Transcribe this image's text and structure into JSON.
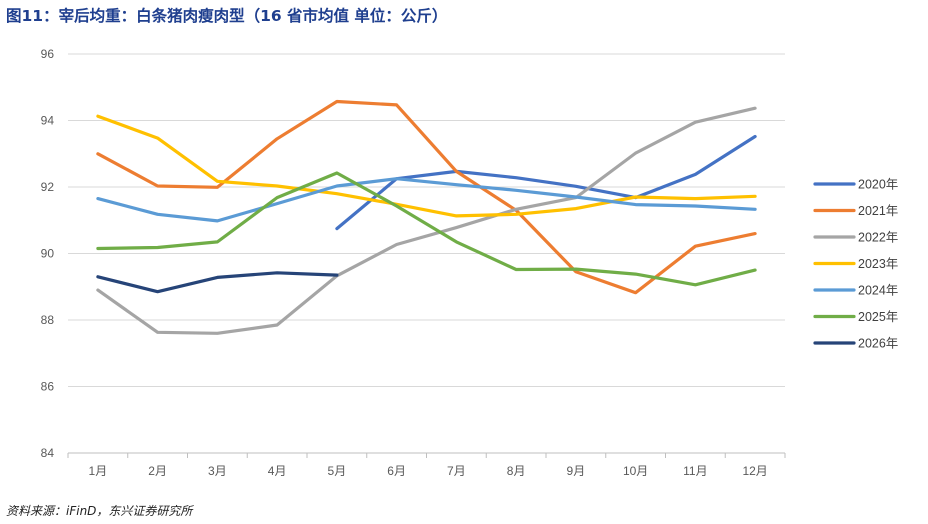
{
  "title": "图11：宰后均重：白条猪肉瘦肉型（16 省市均值  单位：公斤）",
  "source": "资料来源：iFinD，东兴证券研究所",
  "chart_data": {
    "type": "line",
    "categories": [
      "1月",
      "2月",
      "3月",
      "4月",
      "5月",
      "6月",
      "7月",
      "8月",
      "9月",
      "10月",
      "11月",
      "12月"
    ],
    "ylim": [
      84,
      96
    ],
    "yticks": [
      84,
      86,
      88,
      90,
      92,
      94,
      96
    ],
    "grid": true,
    "legend": "right",
    "series": [
      {
        "name": "2020年",
        "color": "#4472c4",
        "values": [
          null,
          null,
          null,
          null,
          90.75,
          92.25,
          92.47,
          92.28,
          92.02,
          91.68,
          92.38,
          93.52
        ]
      },
      {
        "name": "2021年",
        "color": "#ed7d31",
        "values": [
          93.0,
          92.03,
          91.99,
          93.45,
          94.57,
          94.47,
          92.47,
          91.3,
          89.45,
          88.82,
          90.22,
          90.6
        ]
      },
      {
        "name": "2022年",
        "color": "#a5a5a5",
        "values": [
          88.9,
          87.63,
          87.6,
          87.85,
          89.33,
          90.27,
          90.78,
          91.33,
          91.68,
          93.02,
          93.95,
          94.37
        ]
      },
      {
        "name": "2023年",
        "color": "#ffc000",
        "values": [
          94.13,
          93.47,
          92.17,
          92.03,
          91.8,
          91.48,
          91.13,
          91.18,
          91.35,
          91.7,
          91.65,
          91.72
        ]
      },
      {
        "name": "2024年",
        "color": "#5b9bd5",
        "values": [
          91.65,
          91.18,
          90.98,
          91.5,
          92.03,
          92.25,
          92.07,
          91.9,
          91.7,
          91.47,
          91.43,
          91.33
        ]
      },
      {
        "name": "2025年",
        "color": "#70ad47",
        "values": [
          90.15,
          90.18,
          90.35,
          91.68,
          92.42,
          91.43,
          90.35,
          89.52,
          89.53,
          89.38,
          89.06,
          89.5
        ]
      },
      {
        "name": "2026年",
        "color": "#264478",
        "values": [
          89.3,
          88.85,
          89.28,
          89.42,
          89.35,
          null,
          null,
          null,
          null,
          null,
          null,
          null
        ]
      }
    ]
  }
}
